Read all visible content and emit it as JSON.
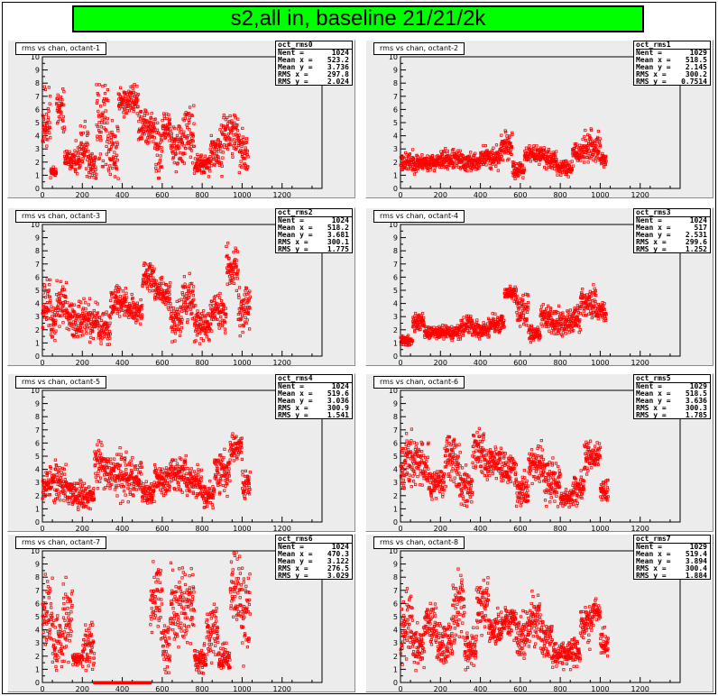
{
  "page_title": "s2,all in, baseline 21/21/2k",
  "colors": {
    "marker": "#ff0000",
    "title_bg": "#00ff00",
    "pad_bg": "#ececec"
  },
  "chart_data": [
    {
      "type": "scatter",
      "title": "rms vs chan, octant-1",
      "stats": {
        "name": "oct_rms0",
        "Nent": "1024",
        "Mean x": "523.2",
        "Mean y": "3.736",
        "RMS x": "297.8",
        "RMS y": "2.024"
      },
      "xlim": [
        0,
        1400
      ],
      "ylim": [
        0,
        10
      ],
      "xticks": [
        0,
        200,
        400,
        600,
        800,
        1000,
        1200
      ],
      "yticks": [
        0,
        1,
        2,
        3,
        4,
        5,
        6,
        7,
        8,
        9,
        10
      ],
      "seed": 11,
      "segments": [
        [
          0,
          40,
          5.2,
          2.2
        ],
        [
          40,
          70,
          1.3,
          0.3
        ],
        [
          70,
          110,
          5.8,
          1.4
        ],
        [
          110,
          160,
          2.2,
          0.6
        ],
        [
          160,
          190,
          2.0,
          1.0
        ],
        [
          190,
          230,
          2.8,
          1.8
        ],
        [
          230,
          270,
          1.8,
          1.0
        ],
        [
          270,
          330,
          5.0,
          2.8
        ],
        [
          330,
          380,
          3.0,
          1.8
        ],
        [
          380,
          440,
          6.6,
          1.0
        ],
        [
          440,
          480,
          6.8,
          1.0
        ],
        [
          480,
          560,
          4.6,
          1.2
        ],
        [
          560,
          600,
          3.0,
          2.0
        ],
        [
          600,
          640,
          4.6,
          1.0
        ],
        [
          640,
          700,
          3.2,
          1.4
        ],
        [
          700,
          760,
          4.0,
          1.6
        ],
        [
          760,
          840,
          1.8,
          0.6
        ],
        [
          840,
          900,
          2.8,
          1.2
        ],
        [
          900,
          980,
          4.2,
          1.4
        ],
        [
          980,
          1030,
          2.8,
          1.2
        ]
      ]
    },
    {
      "type": "scatter",
      "title": "rms vs chan, octant-2",
      "stats": {
        "name": "oct_rms1",
        "Nent": "1029",
        "Mean x": "518.5",
        "Mean y": "2.145",
        "RMS x": "300.2",
        "RMS y": "0.7514"
      },
      "xlim": [
        0,
        1400
      ],
      "ylim": [
        0,
        10
      ],
      "xticks": [
        0,
        200,
        400,
        600,
        800,
        1000,
        1200
      ],
      "yticks": [
        0,
        1,
        2,
        3,
        4,
        5,
        6,
        7,
        8,
        9,
        10
      ],
      "seed": 23,
      "segments": [
        [
          0,
          100,
          2.0,
          0.6
        ],
        [
          100,
          200,
          2.0,
          0.5
        ],
        [
          200,
          300,
          2.2,
          0.6
        ],
        [
          300,
          400,
          2.0,
          0.6
        ],
        [
          400,
          500,
          2.4,
          0.7
        ],
        [
          500,
          560,
          3.2,
          0.8
        ],
        [
          560,
          620,
          1.4,
          0.5
        ],
        [
          620,
          720,
          2.6,
          0.5
        ],
        [
          720,
          780,
          2.2,
          0.6
        ],
        [
          780,
          860,
          1.6,
          0.5
        ],
        [
          860,
          920,
          2.8,
          0.8
        ],
        [
          920,
          1000,
          3.2,
          0.9
        ],
        [
          1000,
          1030,
          2.2,
          0.4
        ]
      ]
    },
    {
      "type": "scatter",
      "title": "rms vs chan, octant-3",
      "stats": {
        "name": "oct_rms2",
        "Nent": "1024",
        "Mean x": "518.2",
        "Mean y": "3.681",
        "RMS x": "300.1",
        "RMS y": "1.775"
      },
      "xlim": [
        0,
        1400
      ],
      "ylim": [
        0,
        10
      ],
      "xticks": [
        0,
        200,
        400,
        600,
        800,
        1000,
        1200
      ],
      "yticks": [
        0,
        1,
        2,
        3,
        4,
        5,
        6,
        7,
        8,
        9,
        10
      ],
      "seed": 37,
      "segments": [
        [
          0,
          40,
          4.0,
          1.4
        ],
        [
          40,
          70,
          2.6,
          1.4
        ],
        [
          70,
          120,
          4.0,
          1.4
        ],
        [
          120,
          200,
          2.8,
          1.2
        ],
        [
          200,
          280,
          2.6,
          1.2
        ],
        [
          280,
          340,
          2.0,
          1.0
        ],
        [
          340,
          420,
          4.2,
          1.0
        ],
        [
          420,
          500,
          3.6,
          0.8
        ],
        [
          500,
          560,
          6.0,
          1.0
        ],
        [
          560,
          600,
          5.0,
          0.8
        ],
        [
          600,
          640,
          4.6,
          0.8
        ],
        [
          640,
          700,
          3.0,
          1.4
        ],
        [
          700,
          760,
          4.4,
          1.6
        ],
        [
          760,
          840,
          2.4,
          1.0
        ],
        [
          840,
          920,
          3.4,
          1.2
        ],
        [
          920,
          980,
          6.8,
          1.2
        ],
        [
          980,
          1040,
          3.6,
          1.4
        ]
      ]
    },
    {
      "type": "scatter",
      "title": "rms vs chan, octant-4",
      "stats": {
        "name": "oct_rms3",
        "Nent": "1024",
        "Mean x": "517",
        "Mean y": "2.531",
        "RMS x": "299.6",
        "RMS y": "1.252"
      },
      "xlim": [
        0,
        1400
      ],
      "ylim": [
        0,
        10
      ],
      "xticks": [
        0,
        200,
        400,
        600,
        800,
        1000,
        1200
      ],
      "yticks": [
        0,
        1,
        2,
        3,
        4,
        5,
        6,
        7,
        8,
        9,
        10
      ],
      "seed": 41,
      "segments": [
        [
          0,
          60,
          1.2,
          0.3
        ],
        [
          60,
          120,
          2.6,
          0.6
        ],
        [
          120,
          200,
          1.8,
          0.4
        ],
        [
          200,
          300,
          1.8,
          0.4
        ],
        [
          300,
          360,
          2.4,
          0.6
        ],
        [
          360,
          440,
          2.0,
          0.5
        ],
        [
          440,
          520,
          2.4,
          0.6
        ],
        [
          520,
          580,
          4.8,
          0.4
        ],
        [
          580,
          640,
          3.4,
          1.0
        ],
        [
          640,
          700,
          1.8,
          0.5
        ],
        [
          700,
          760,
          3.0,
          0.8
        ],
        [
          760,
          840,
          2.4,
          0.9
        ],
        [
          840,
          900,
          2.8,
          0.9
        ],
        [
          900,
          980,
          4.0,
          1.0
        ],
        [
          980,
          1030,
          3.4,
          0.6
        ]
      ]
    },
    {
      "type": "scatter",
      "title": "rms vs chan, octant-5",
      "stats": {
        "name": "oct_rms4",
        "Nent": "1024",
        "Mean x": "519.6",
        "Mean y": "3.036",
        "RMS x": "300.9",
        "RMS y": "1.541"
      },
      "xlim": [
        0,
        1400
      ],
      "ylim": [
        0,
        10
      ],
      "xticks": [
        0,
        200,
        400,
        600,
        800,
        1000,
        1200
      ],
      "yticks": [
        0,
        1,
        2,
        3,
        4,
        5,
        6,
        7,
        8,
        9,
        10
      ],
      "seed": 53,
      "segments": [
        [
          0,
          60,
          3.0,
          1.0
        ],
        [
          60,
          120,
          3.0,
          1.2
        ],
        [
          120,
          200,
          2.2,
          0.9
        ],
        [
          200,
          260,
          2.0,
          0.8
        ],
        [
          260,
          300,
          4.4,
          1.4
        ],
        [
          300,
          360,
          4.0,
          1.2
        ],
        [
          360,
          420,
          3.6,
          1.4
        ],
        [
          420,
          500,
          3.2,
          1.2
        ],
        [
          500,
          560,
          2.2,
          0.7
        ],
        [
          560,
          640,
          3.2,
          1.0
        ],
        [
          640,
          720,
          3.8,
          1.0
        ],
        [
          720,
          800,
          3.2,
          1.0
        ],
        [
          800,
          860,
          2.0,
          0.7
        ],
        [
          860,
          940,
          4.0,
          1.4
        ],
        [
          940,
          1000,
          5.8,
          0.9
        ],
        [
          1000,
          1040,
          2.8,
          1.0
        ]
      ]
    },
    {
      "type": "scatter",
      "title": "rms vs chan, octant-6",
      "stats": {
        "name": "oct_rms5",
        "Nent": "1029",
        "Mean x": "518.5",
        "Mean y": "3.636",
        "RMS x": "300.3",
        "RMS y": "1.785"
      },
      "xlim": [
        0,
        1400
      ],
      "ylim": [
        0,
        10
      ],
      "xticks": [
        0,
        200,
        400,
        600,
        800,
        1000,
        1200
      ],
      "yticks": [
        0,
        1,
        2,
        3,
        4,
        5,
        6,
        7,
        8,
        9,
        10
      ],
      "seed": 67,
      "segments": [
        [
          0,
          60,
          4.6,
          1.6
        ],
        [
          60,
          140,
          4.6,
          1.6
        ],
        [
          140,
          220,
          3.0,
          1.0
        ],
        [
          220,
          300,
          4.6,
          1.6
        ],
        [
          300,
          360,
          2.8,
          1.2
        ],
        [
          360,
          420,
          5.6,
          1.2
        ],
        [
          420,
          500,
          4.6,
          1.0
        ],
        [
          500,
          580,
          4.0,
          1.2
        ],
        [
          580,
          640,
          2.4,
          1.0
        ],
        [
          640,
          720,
          4.4,
          1.2
        ],
        [
          720,
          800,
          3.0,
          1.4
        ],
        [
          800,
          860,
          1.8,
          0.5
        ],
        [
          860,
          920,
          2.6,
          1.0
        ],
        [
          920,
          1000,
          5.0,
          1.0
        ],
        [
          1000,
          1040,
          2.4,
          0.6
        ]
      ]
    },
    {
      "type": "scatter",
      "title": "rms vs chan, octant-7",
      "stats": {
        "name": "oct_rms6",
        "Nent": "1024",
        "Mean x": "470.3",
        "Mean y": "3.122",
        "RMS x": "276.5",
        "RMS y": "3.029"
      },
      "xlim": [
        0,
        1400
      ],
      "ylim": [
        0,
        10
      ],
      "xticks": [
        0,
        200,
        400,
        600,
        800,
        1000,
        1200
      ],
      "yticks": [
        0,
        1,
        2,
        3,
        4,
        5,
        6,
        7,
        8,
        9,
        10
      ],
      "seed": 79,
      "segments": [
        [
          0,
          50,
          5.6,
          2.6
        ],
        [
          50,
          100,
          3.0,
          2.0
        ],
        [
          100,
          150,
          5.0,
          2.6
        ],
        [
          150,
          200,
          1.8,
          0.4
        ],
        [
          200,
          260,
          2.6,
          1.4
        ],
        [
          260,
          540,
          0.0,
          0.0
        ],
        [
          540,
          600,
          6.4,
          2.4
        ],
        [
          600,
          640,
          3.0,
          1.8
        ],
        [
          640,
          700,
          5.8,
          2.4
        ],
        [
          700,
          760,
          6.0,
          2.6
        ],
        [
          760,
          820,
          1.8,
          0.8
        ],
        [
          820,
          880,
          4.0,
          2.0
        ],
        [
          880,
          940,
          1.8,
          0.8
        ],
        [
          940,
          1000,
          7.0,
          2.4
        ],
        [
          1000,
          1040,
          5.4,
          2.6
        ]
      ]
    },
    {
      "type": "scatter",
      "title": "rms vs chan, octant-8",
      "stats": {
        "name": "oct_rms7",
        "Nent": "1029",
        "Mean x": "519.4",
        "Mean y": "3.894",
        "RMS x": "300.4",
        "RMS y": "1.884"
      },
      "xlim": [
        0,
        1400
      ],
      "ylim": [
        0,
        10
      ],
      "xticks": [
        0,
        200,
        400,
        600,
        800,
        1000,
        1200
      ],
      "yticks": [
        0,
        1,
        2,
        3,
        4,
        5,
        6,
        7,
        8,
        9,
        10
      ],
      "seed": 97,
      "segments": [
        [
          0,
          60,
          4.4,
          1.8
        ],
        [
          60,
          120,
          2.6,
          1.2
        ],
        [
          120,
          180,
          4.4,
          1.6
        ],
        [
          180,
          260,
          3.0,
          1.4
        ],
        [
          260,
          320,
          5.6,
          2.4
        ],
        [
          320,
          380,
          2.6,
          1.2
        ],
        [
          380,
          440,
          5.8,
          1.6
        ],
        [
          440,
          520,
          4.0,
          1.2
        ],
        [
          520,
          580,
          4.6,
          1.0
        ],
        [
          580,
          640,
          3.6,
          1.4
        ],
        [
          640,
          700,
          4.8,
          1.6
        ],
        [
          700,
          760,
          3.4,
          1.2
        ],
        [
          760,
          840,
          2.2,
          0.8
        ],
        [
          840,
          900,
          2.4,
          0.9
        ],
        [
          900,
          960,
          4.4,
          1.2
        ],
        [
          960,
          1000,
          5.4,
          0.8
        ],
        [
          1000,
          1040,
          3.0,
          1.0
        ]
      ]
    }
  ]
}
